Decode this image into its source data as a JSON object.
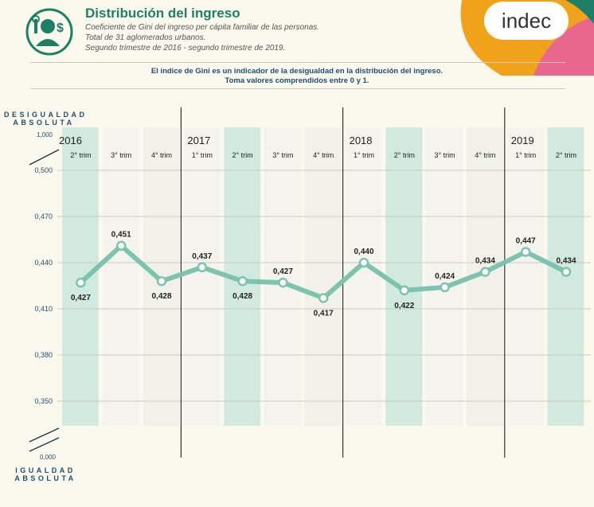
{
  "header": {
    "title": "Distribución del ingreso",
    "subtitle_lines": [
      "Coeficiente de Gini del ingreso per cápita familiar de las personas.",
      "Total de 31 aglomerados urbanos.",
      "Segundo trimestre de 2016 - segundo trimestre de 2019."
    ],
    "note_lines": [
      "El índice de Gini es un indicador de la desigualdad en la distribución del ingreso.",
      "Toma valores comprendidos entre 0 y 1."
    ],
    "logo_text": "indec",
    "icon": "worker-money-icon"
  },
  "colors": {
    "accent": "#1e7f66",
    "line": "#7cc4b0",
    "stripe": "#cfe8dd",
    "axis_text": "#1f4e6e",
    "background": "#fbf8ee"
  },
  "chart_data": {
    "type": "line",
    "years": [
      {
        "label": "2016",
        "start": 0
      },
      {
        "label": "2017",
        "start": 3
      },
      {
        "label": "2018",
        "start": 7
      },
      {
        "label": "2019",
        "start": 11
      }
    ],
    "categories": [
      "2° trim",
      "3° trim",
      "4° trim",
      "1° trim",
      "2° trim",
      "3° trim",
      "4° trim",
      "1° trim",
      "2° trim",
      "3° trim",
      "4° trim",
      "1° trim",
      "2° trim"
    ],
    "values": [
      0.427,
      0.451,
      0.428,
      0.437,
      0.428,
      0.427,
      0.417,
      0.44,
      0.422,
      0.424,
      0.434,
      0.447,
      0.434
    ],
    "value_labels": [
      "0,427",
      "0,451",
      "0,428",
      "0,437",
      "0,428",
      "0,427",
      "0,417",
      "0,440",
      "0,422",
      "0,424",
      "0,434",
      "0,447",
      "0,434"
    ],
    "y_ticks": [
      "0,500",
      "0,470",
      "0,440",
      "0,410",
      "0,380",
      "0,350"
    ],
    "y_tick_values": [
      0.5,
      0.47,
      0.44,
      0.41,
      0.38,
      0.35
    ],
    "y_top_label": "1,000",
    "y_bottom_label": "0,000",
    "y_top_caption": [
      "DESIGUALDAD",
      "ABSOLUTA"
    ],
    "y_bottom_caption": [
      "IGUALDAD",
      "ABSOLUTA"
    ],
    "ylim": [
      0.35,
      0.5
    ],
    "axis_break": true,
    "grid": true
  }
}
